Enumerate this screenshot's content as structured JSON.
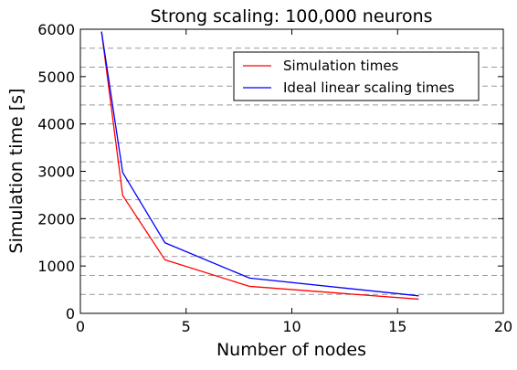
{
  "chart_data": {
    "type": "line",
    "title": "Strong scaling: 100,000 neurons",
    "xlabel": "Number of nodes",
    "ylabel": "Simulation time [s]",
    "xlim": [
      0,
      20
    ],
    "ylim": [
      0,
      6000
    ],
    "xticks": [
      0,
      5,
      10,
      15,
      20
    ],
    "yticks": [
      0,
      1000,
      2000,
      3000,
      4000,
      5000,
      6000
    ],
    "grid": "dashed horizontal",
    "gridlines": [
      400,
      800,
      1200,
      1600,
      2000,
      2400,
      2800,
      3200,
      3600,
      4000,
      4400,
      4800,
      5200,
      5600
    ],
    "gridline_color": "#999999",
    "legend_position": "top-right",
    "series": [
      {
        "name": "Simulation times",
        "color": "#ff0000",
        "x": [
          1,
          2,
          4,
          8,
          16
        ],
        "y": [
          5950,
          2490,
          1130,
          570,
          300
        ]
      },
      {
        "name": "Ideal linear scaling times",
        "color": "#0000ff",
        "x": [
          1,
          2,
          4,
          8,
          16
        ],
        "y": [
          5950,
          2975,
          1490,
          745,
          370
        ]
      }
    ]
  }
}
